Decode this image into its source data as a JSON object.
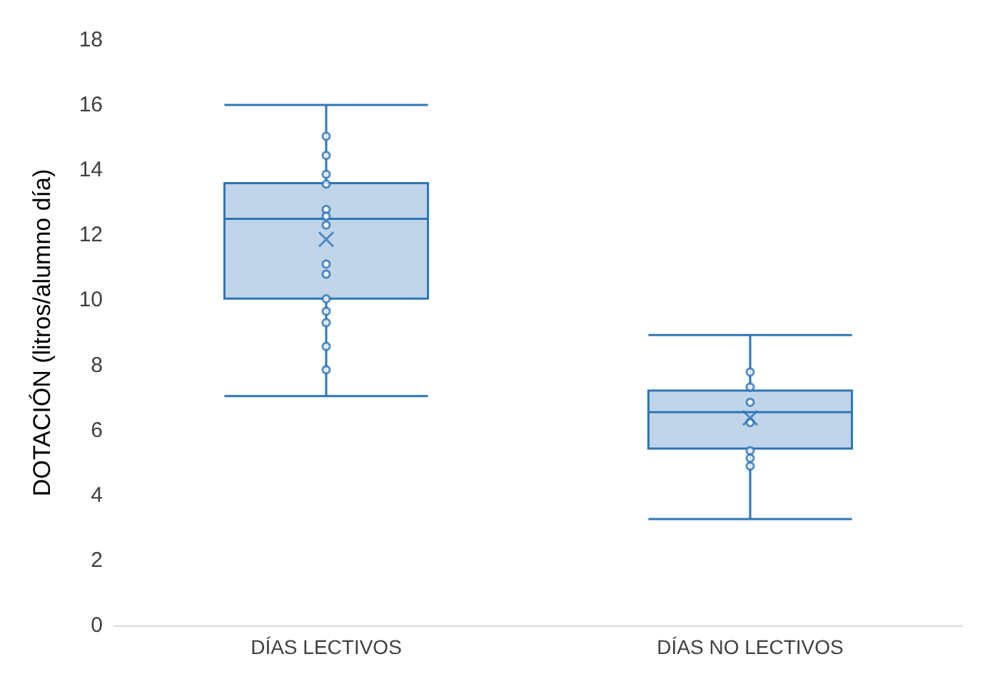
{
  "chart_data": {
    "type": "box",
    "ylabel": "DOTACIÓN (litros/alumno día)",
    "categories": [
      "DÍAS LECTIVOS",
      "DÍAS NO LECTIVOS"
    ],
    "ylim": [
      0,
      18
    ],
    "yticks": [
      0,
      2,
      4,
      6,
      8,
      10,
      12,
      14,
      16,
      18
    ],
    "grid": false,
    "series": [
      {
        "color": "#2e75b6",
        "boxes": [
          {
            "low": 7.05,
            "q1": 10.05,
            "median": 12.5,
            "q3": 13.6,
            "high": 16,
            "mean": 11.87
          },
          {
            "low": 3.27,
            "q1": 5.44,
            "median": 6.56,
            "q3": 7.22,
            "high": 8.93,
            "mean": 6.38
          }
        ]
      },
      {
        "type": "scatter",
        "color": "#2e75b6",
        "marker": "circle",
        "x": [
          "DÍAS LECTIVOS",
          "DÍAS LECTIVOS",
          "DÍAS LECTIVOS",
          "DÍAS LECTIVOS",
          "DÍAS LECTIVOS",
          "DÍAS LECTIVOS",
          "DÍAS LECTIVOS",
          "DÍAS LECTIVOS",
          "DÍAS LECTIVOS",
          "DÍAS LECTIVOS",
          "DÍAS LECTIVOS",
          "DÍAS LECTIVOS",
          "DÍAS LECTIVOS",
          "DÍAS LECTIVOS",
          "DÍAS NO LECTIVOS",
          "DÍAS NO LECTIVOS",
          "DÍAS NO LECTIVOS",
          "DÍAS NO LECTIVOS",
          "DÍAS NO LECTIVOS",
          "DÍAS NO LECTIVOS",
          "DÍAS NO LECTIVOS"
        ],
        "values": [
          15.04,
          14.45,
          13.87,
          13.57,
          12.79,
          12.58,
          12.31,
          11.11,
          10.8,
          10.04,
          9.66,
          9.31,
          8.58,
          7.86,
          7.79,
          7.33,
          6.86,
          6.24,
          5.37,
          5.14,
          4.9
        ]
      }
    ]
  }
}
